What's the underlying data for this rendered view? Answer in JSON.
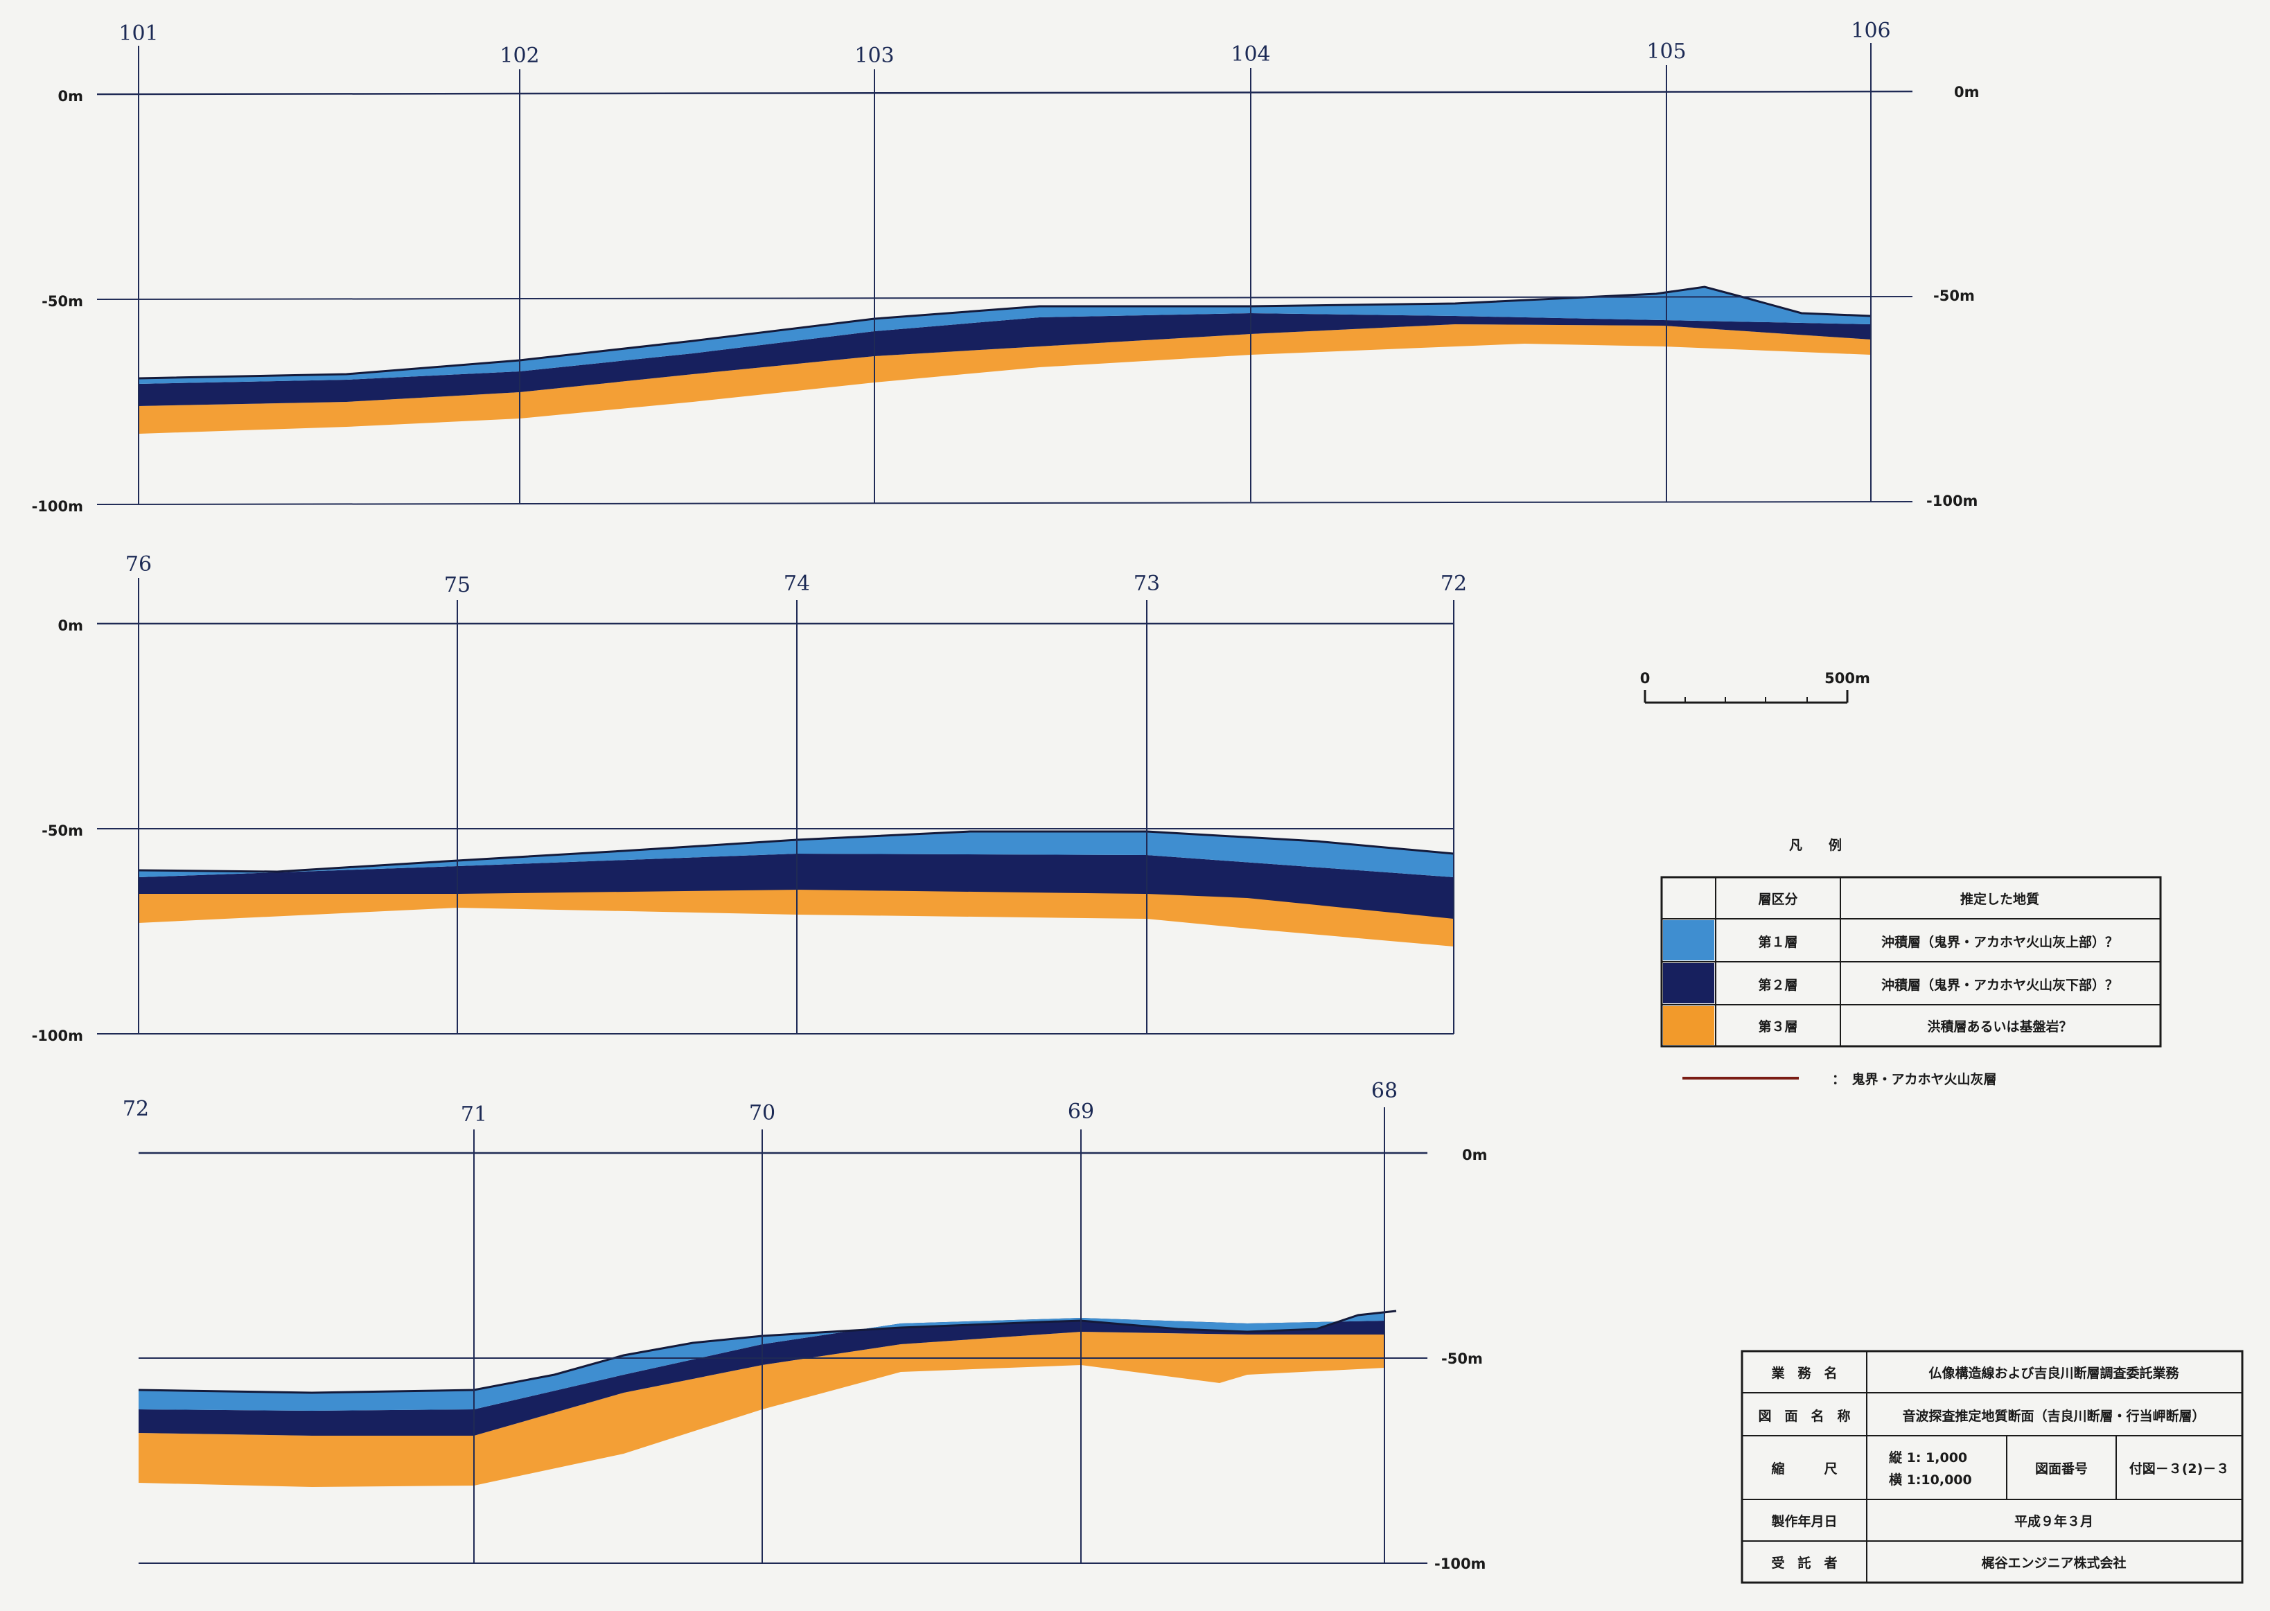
{
  "sections": [
    {
      "id": "s1",
      "station_labels": [
        "101",
        "102",
        "103",
        "104",
        "105",
        "106"
      ],
      "depth_labels_left": [
        "0m",
        "-50m",
        "-100m"
      ],
      "depth_labels_right": [
        "0m",
        "-50m",
        "-100m"
      ]
    },
    {
      "id": "s2",
      "station_labels": [
        "76",
        "75",
        "74",
        "73",
        "72"
      ],
      "depth_labels_left": [
        "0m",
        "-50m",
        "-100m"
      ]
    },
    {
      "id": "s3",
      "station_labels": [
        "72",
        "71",
        "70",
        "69",
        "68"
      ],
      "depth_labels_right": [
        "0m",
        "-50m",
        "-100m"
      ]
    }
  ],
  "scale_bar": {
    "start": "0",
    "end": "500m"
  },
  "legend": {
    "title": "凡　　例",
    "header_layer": "層区分",
    "header_geology": "推定した地質",
    "rows": [
      {
        "layer": "第１層",
        "geology": "沖積層（鬼界・アカホヤ火山灰上部）？",
        "color": "#3f8ed0"
      },
      {
        "layer": "第２層",
        "geology": "沖積層（鬼界・アカホヤ火山灰下部）？",
        "color": "#17205e"
      },
      {
        "layer": "第３層",
        "geology": "洪積層あるいは基盤岩？",
        "color": "#f29a2b"
      }
    ],
    "line_desc": "：　鬼界・アカホヤ火山灰層",
    "line_color": "#7a1c14"
  },
  "title_block": {
    "row1_label": "業　務　名",
    "row1_value": "仏像構造線および吉良川断層調査委託業務",
    "row2_label": "図　面　名　称",
    "row2_value": "音波探査推定地質断面（吉良川断層・行当岬断層）",
    "row3_label": "縮　　　尺",
    "row3_scale_v": "縦 1:  1,000",
    "row3_scale_h": "横 1:10,000",
    "row3_no_label": "図面番号",
    "row3_no_value": "付図－３(2)－３",
    "row4_label": "製作年月日",
    "row4_value": "平成９年３月",
    "row5_label": "受　託　者",
    "row5_value": "梶谷エンジニア株式会社"
  },
  "colors": {
    "layer1": "#3f8ed0",
    "layer2": "#17205e",
    "layer3": "#f29a2b",
    "grid": "#1f2a55"
  }
}
